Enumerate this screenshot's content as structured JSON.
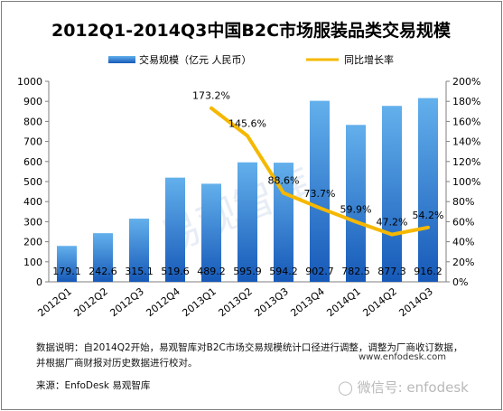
{
  "chart_data": {
    "type": "bar",
    "title": "2012Q1-2014Q3中国B2C市场服装品类交易规模",
    "categories": [
      "2012Q1",
      "2012Q2",
      "2012Q3",
      "2012Q4",
      "2013Q1",
      "2013Q2",
      "2013Q3",
      "2013Q4",
      "2014Q1",
      "2014Q2",
      "2014Q3"
    ],
    "series": [
      {
        "name": "交易规模（亿元 人民币）",
        "type": "bar",
        "axis": "left",
        "values": [
          179.1,
          242.6,
          315.1,
          519.6,
          489.2,
          595.9,
          594.2,
          902.7,
          782.5,
          877.3,
          916.2
        ],
        "labels": [
          "179.1",
          "242.6",
          "315.1",
          "519.6",
          "489.2",
          "595.9",
          "594.2",
          "902.7",
          "782.5",
          "877.3",
          "916.2"
        ],
        "color": "#2b7ed6"
      },
      {
        "name": "同比增长率",
        "type": "line",
        "axis": "right",
        "values": [
          null,
          null,
          null,
          null,
          173.2,
          145.6,
          88.6,
          73.7,
          59.9,
          47.2,
          54.2
        ],
        "labels": [
          "",
          "",
          "",
          "",
          "173.2%",
          "145.6%",
          "88.6%",
          "73.7%",
          "59.9%",
          "47.2%",
          "54.2%"
        ],
        "color": "#f5b800"
      }
    ],
    "y_left": {
      "min": 0,
      "max": 1000,
      "ticks": [
        "0",
        "100",
        "200",
        "300",
        "400",
        "500",
        "600",
        "700",
        "800",
        "900",
        "1000"
      ]
    },
    "y_right": {
      "min": 0,
      "max": 200,
      "ticks": [
        "0%",
        "20%",
        "40%",
        "60%",
        "80%",
        "100%",
        "120%",
        "140%",
        "160%",
        "180%",
        "200%"
      ]
    },
    "grid": false,
    "legend_position": "top"
  },
  "notes": {
    "line1": "数据说明：自2014Q2开始，易观智库对B2C市场交易规模统计口径进行调整，调整为厂商收订数据，",
    "line2": "并根据厂商财报对历史数据进行校对。",
    "source": "来源：EnfoDesk 易观智库"
  },
  "watermarks": {
    "url": "www.enfodesk.com",
    "wechat": "微信号: enfodesk",
    "center": "易观智库"
  },
  "colors": {
    "bar_top": "#63b0ec",
    "bar_bottom": "#1659b8",
    "line": "#f5b800",
    "axis": "#7f7f7f"
  }
}
